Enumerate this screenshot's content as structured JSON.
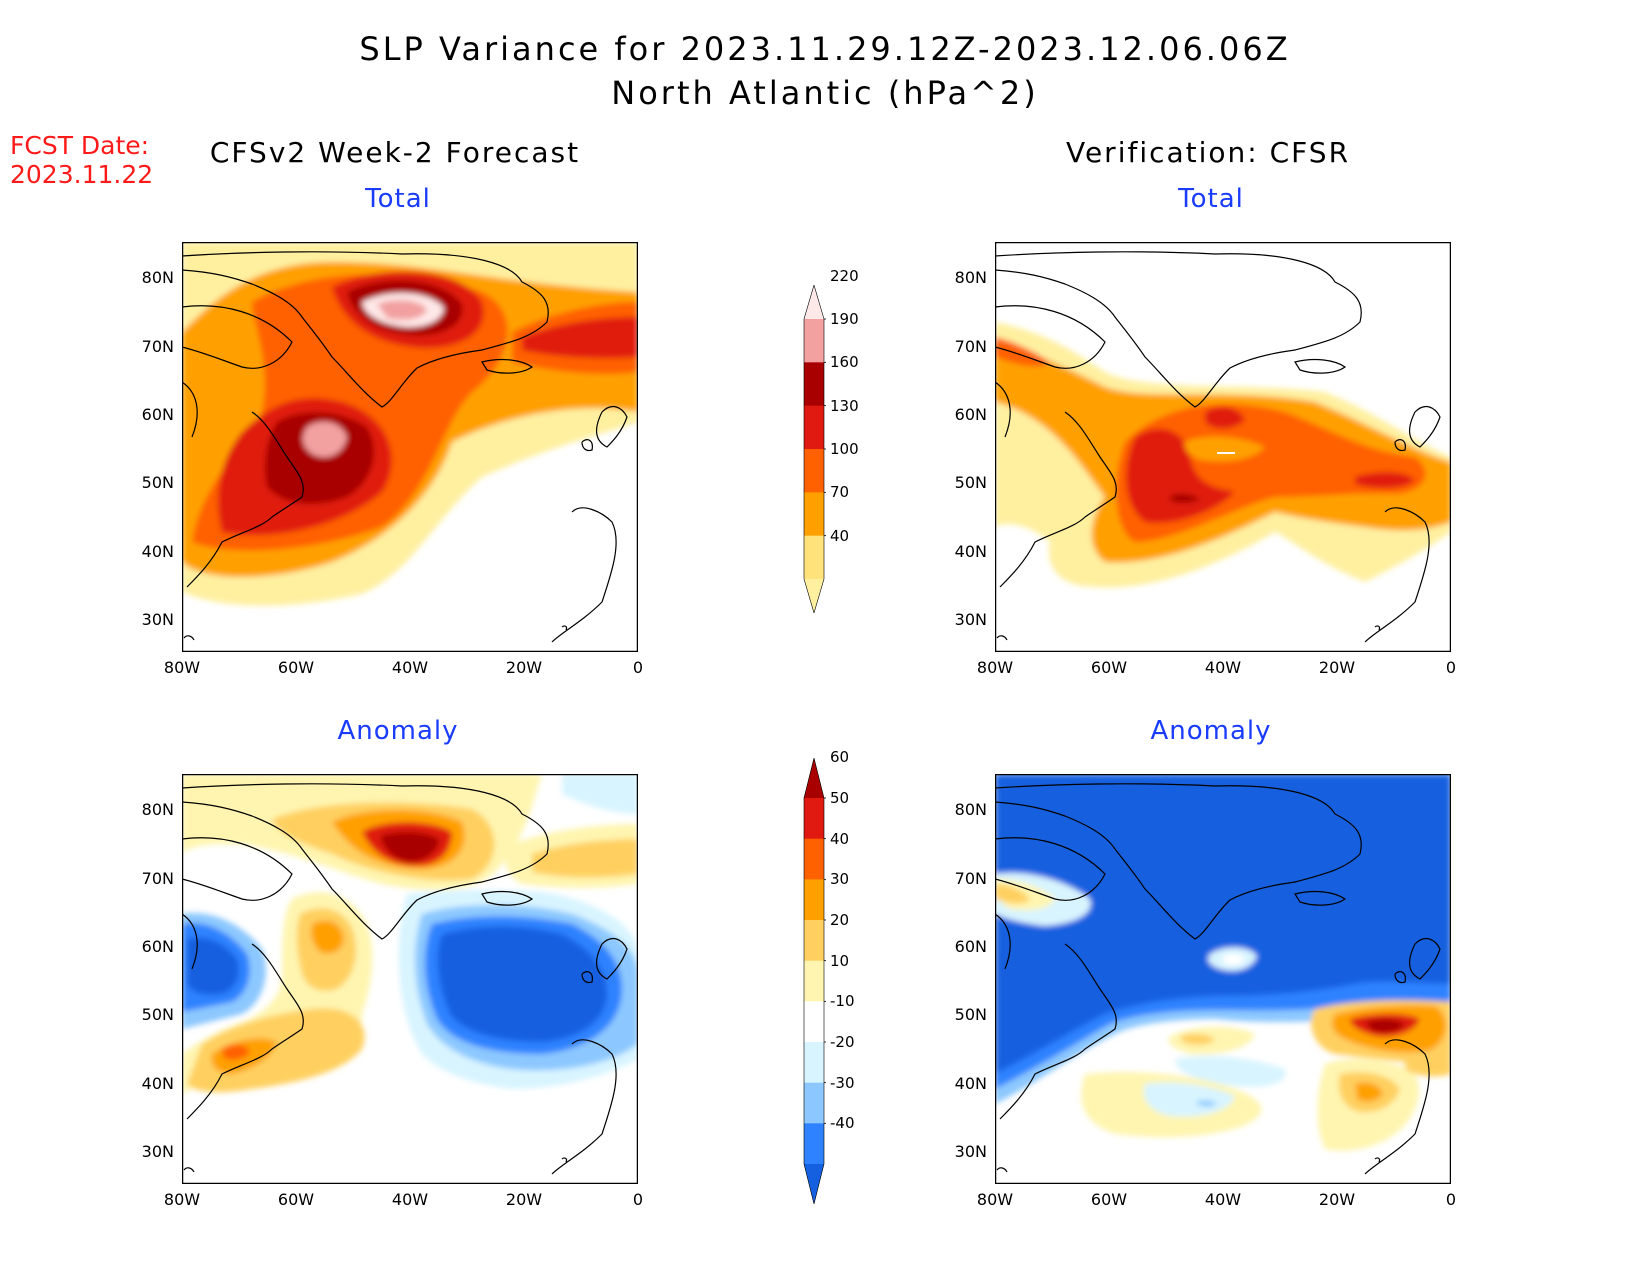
{
  "title_line1": "SLP Variance for 2023.11.29.12Z-2023.12.06.06Z",
  "title_line2": "North Atlantic (hPa^2)",
  "fcst_date_label": "FCST Date:",
  "fcst_date_value": "2023.11.22",
  "left_column_title": "CFSv2 Week-2 Forecast",
  "right_column_title": "Verification: CFSR",
  "panel_subtitles": {
    "total": "Total",
    "anomaly": "Anomaly"
  },
  "lat_ticks": [
    "80N",
    "70N",
    "60N",
    "50N",
    "40N",
    "30N"
  ],
  "lon_ticks": [
    "80W",
    "60W",
    "40W",
    "20W",
    "0"
  ],
  "total_colorbar": {
    "levels": [
      "40",
      "70",
      "100",
      "130",
      "160",
      "190",
      "220"
    ],
    "colors": [
      "#fff0a0",
      "#ffe27a",
      "#ffa000",
      "#ff6000",
      "#e01a10",
      "#a80000",
      "#f2a0a0",
      "#ffe8e8"
    ]
  },
  "anomaly_colorbar": {
    "levels": [
      "-40",
      "-30",
      "-20",
      "-10",
      "10",
      "20",
      "30",
      "40",
      "50",
      "60"
    ],
    "colors": [
      "#1560e0",
      "#2f82ff",
      "#8cc8ff",
      "#d8f4ff",
      "#ffffff",
      "#fff5b0",
      "#ffd060",
      "#ffa000",
      "#ff6000",
      "#e01a10",
      "#a80000"
    ]
  },
  "colors": {
    "fcst_red": "#ff1a1a",
    "subtitle_blue": "#1a3cff"
  }
}
